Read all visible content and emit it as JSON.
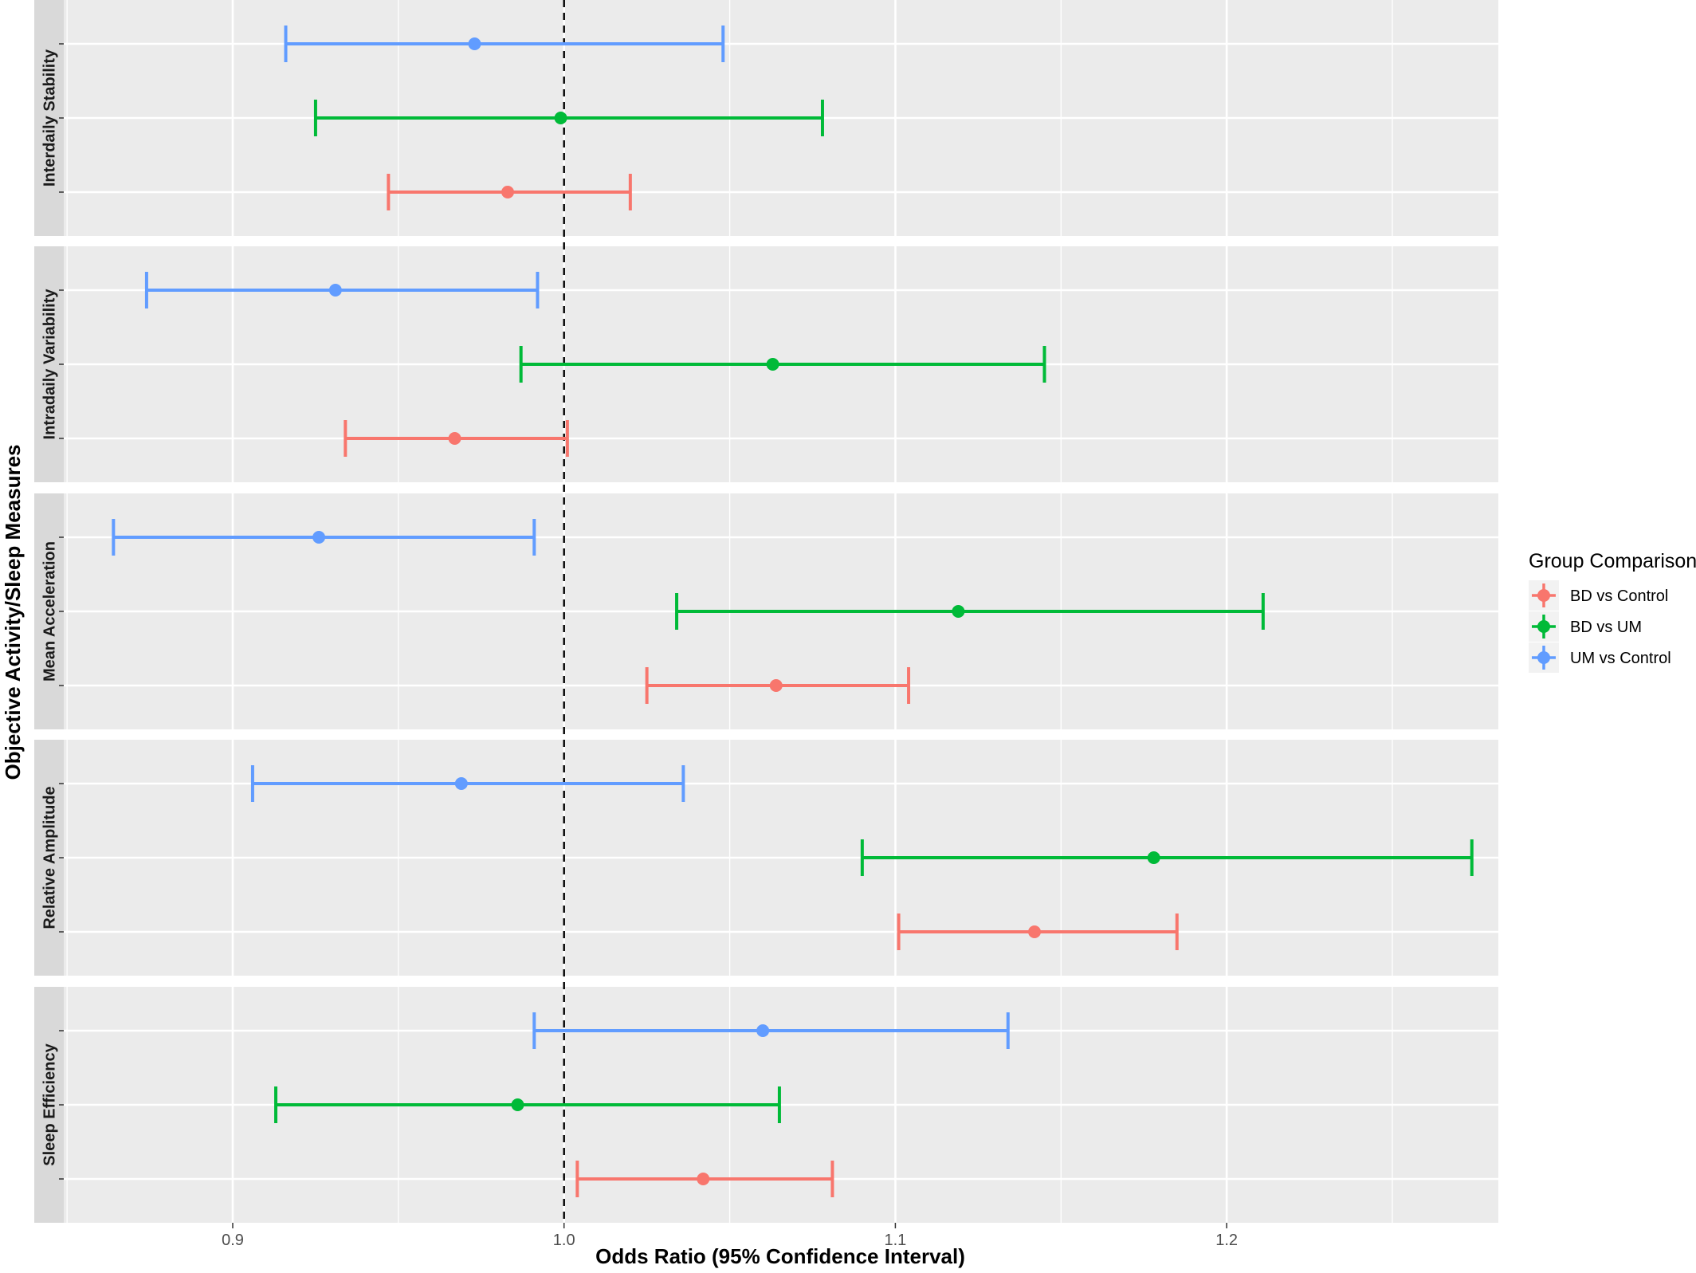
{
  "chart_data": {
    "type": "forest",
    "xlabel": "Odds Ratio (95% Confidence Interval)",
    "ylabel": "Objective Activity/Sleep Measures",
    "xlim": [
      0.849,
      1.282
    ],
    "x_ticks": [
      0.9,
      1.0,
      1.1,
      1.2
    ],
    "x_tick_labels": [
      "0.9",
      "1.0",
      "1.1",
      "1.2"
    ],
    "reference_line": 1.0,
    "grid": true,
    "legend": {
      "title": "Group Comparison",
      "position": "right",
      "entries": [
        "BD vs Control",
        "BD vs UM",
        "UM vs Control"
      ]
    },
    "series": [
      {
        "name": "BD vs Control",
        "color": "#F8766D"
      },
      {
        "name": "BD vs UM",
        "color": "#00BA38"
      },
      {
        "name": "UM vs Control",
        "color": "#619CFF"
      }
    ],
    "panels": [
      {
        "label": "Interdaily Stability",
        "estimates": [
          {
            "series": "UM vs Control",
            "or": 0.973,
            "lower": 0.916,
            "upper": 1.048
          },
          {
            "series": "BD vs UM",
            "or": 0.999,
            "lower": 0.925,
            "upper": 1.078
          },
          {
            "series": "BD vs Control",
            "or": 0.983,
            "lower": 0.947,
            "upper": 1.02
          }
        ]
      },
      {
        "label": "Intradaily Variability",
        "estimates": [
          {
            "series": "UM vs Control",
            "or": 0.931,
            "lower": 0.874,
            "upper": 0.992
          },
          {
            "series": "BD vs UM",
            "or": 1.063,
            "lower": 0.987,
            "upper": 1.145
          },
          {
            "series": "BD vs Control",
            "or": 0.967,
            "lower": 0.934,
            "upper": 1.001
          }
        ]
      },
      {
        "label": "Mean Acceleration",
        "estimates": [
          {
            "series": "UM vs Control",
            "or": 0.926,
            "lower": 0.864,
            "upper": 0.991
          },
          {
            "series": "BD vs UM",
            "or": 1.119,
            "lower": 1.034,
            "upper": 1.211
          },
          {
            "series": "BD vs Control",
            "or": 1.064,
            "lower": 1.025,
            "upper": 1.104
          }
        ]
      },
      {
        "label": "Relative Amplitude",
        "estimates": [
          {
            "series": "UM vs Control",
            "or": 0.969,
            "lower": 0.906,
            "upper": 1.036
          },
          {
            "series": "BD vs UM",
            "or": 1.178,
            "lower": 1.09,
            "upper": 1.274
          },
          {
            "series": "BD vs Control",
            "or": 1.142,
            "lower": 1.101,
            "upper": 1.185
          }
        ]
      },
      {
        "label": "Sleep Efficiency",
        "estimates": [
          {
            "series": "UM vs Control",
            "or": 1.06,
            "lower": 0.991,
            "upper": 1.134
          },
          {
            "series": "BD vs UM",
            "or": 0.986,
            "lower": 0.913,
            "upper": 1.065
          },
          {
            "series": "BD vs Control",
            "or": 1.042,
            "lower": 1.004,
            "upper": 1.081
          }
        ]
      }
    ]
  }
}
